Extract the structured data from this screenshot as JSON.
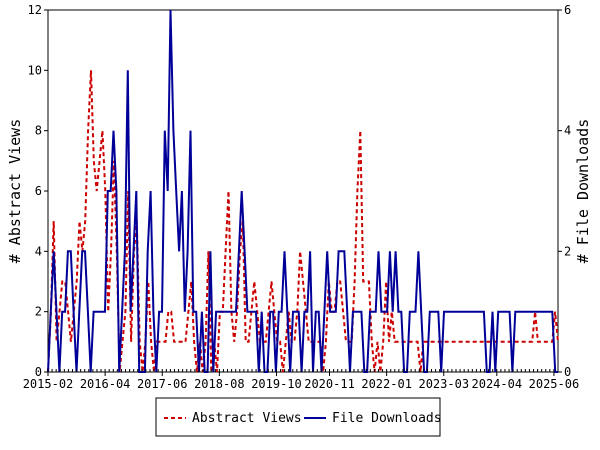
{
  "chart_data": {
    "type": "line",
    "title": "",
    "xlabel": "",
    "ylabel": "# Abstract Views",
    "y2label": "# File Downloads",
    "ylim": [
      0,
      12
    ],
    "y2lim": [
      0,
      6
    ],
    "yticks": [
      "0",
      "2",
      "4",
      "6",
      "8",
      "10",
      "12"
    ],
    "y2ticks": [
      "0",
      "2",
      "4",
      "6"
    ],
    "x_start": "2015-02",
    "x_end": "2025-07",
    "xtick_labels": [
      "2015-02",
      "2016-04",
      "2017-06",
      "2018-08",
      "2019-10",
      "2020-11",
      "2022-01",
      "2023-03",
      "2024-04",
      "2025-06"
    ],
    "legend_position": "bottom",
    "grid": false,
    "series": [
      {
        "name": "Abstract Views",
        "axis": "left",
        "color": "#cc0000",
        "style": "dashed",
        "values": [
          0,
          2,
          5,
          1,
          2,
          3,
          3,
          2,
          1,
          2,
          3,
          5,
          4,
          5,
          8,
          10,
          7,
          6,
          7,
          8,
          6,
          2,
          4,
          7,
          4,
          0,
          1,
          2,
          6,
          1,
          4,
          5,
          1,
          0,
          1,
          3,
          1,
          0,
          1,
          1,
          1,
          1,
          2,
          2,
          1,
          1,
          1,
          1,
          1,
          2,
          3,
          1,
          0,
          1,
          0,
          1,
          4,
          0,
          1,
          0,
          2,
          2,
          4,
          6,
          2,
          1,
          2,
          4,
          5,
          1,
          1,
          2,
          3,
          2,
          1,
          1,
          1,
          2,
          3,
          2,
          1,
          1,
          0,
          1,
          2,
          1,
          1,
          2,
          4,
          3,
          2,
          1,
          1,
          1,
          1,
          1,
          0,
          1,
          3,
          2,
          2,
          3,
          3,
          2,
          1,
          1,
          1,
          3,
          6,
          8,
          3,
          3,
          3,
          1,
          0,
          1,
          0,
          1,
          3,
          1,
          2,
          1,
          1,
          1,
          1,
          1,
          1,
          1,
          1,
          1,
          0,
          1,
          1,
          1,
          1,
          1,
          1,
          1,
          1,
          1,
          1,
          1,
          1,
          1,
          1,
          1,
          1,
          1,
          1,
          1,
          1,
          1,
          1,
          1,
          1,
          1,
          1,
          1,
          1,
          1,
          1,
          1,
          1,
          1,
          1,
          1,
          1,
          1,
          1,
          1,
          2,
          1,
          1,
          1,
          1,
          1,
          1,
          2,
          1
        ]
      },
      {
        "name": "File Downloads",
        "axis": "right",
        "color": "#000099",
        "style": "solid",
        "values": [
          0,
          1,
          2,
          1,
          0,
          1,
          1,
          2,
          2,
          1,
          0,
          1,
          2,
          2,
          1,
          0,
          1,
          1,
          1,
          1,
          1,
          3,
          3,
          4,
          3,
          0,
          1,
          2,
          5,
          1,
          2,
          3,
          0,
          0,
          0,
          2,
          3,
          1,
          0,
          1,
          1,
          4,
          3,
          6,
          4,
          3,
          2,
          3,
          1,
          2,
          4,
          1,
          1,
          0,
          1,
          0,
          0,
          2,
          0,
          1,
          1,
          1,
          1,
          1,
          1,
          1,
          1,
          2,
          3,
          2,
          1,
          1,
          1,
          1,
          0,
          1,
          0,
          0,
          1,
          1,
          0,
          1,
          1,
          2,
          1,
          0,
          1,
          1,
          1,
          0,
          1,
          1,
          2,
          0,
          1,
          1,
          0,
          1,
          2,
          1,
          1,
          1,
          2,
          2,
          2,
          1,
          0,
          1,
          1,
          1,
          1,
          0,
          0,
          1,
          1,
          1,
          2,
          1,
          1,
          1,
          2,
          1,
          2,
          1,
          1,
          0,
          0,
          1,
          1,
          1,
          2,
          1,
          0,
          0,
          1,
          1,
          1,
          1,
          0,
          1,
          1,
          1,
          1,
          1,
          1,
          1,
          1,
          1,
          1,
          1,
          1,
          1,
          1,
          1,
          0,
          0,
          1,
          0,
          1,
          1,
          1,
          1,
          1,
          0,
          1,
          1,
          1,
          1,
          1,
          1,
          1,
          1,
          1,
          1,
          1,
          1,
          1,
          1,
          0,
          0
        ]
      }
    ]
  }
}
